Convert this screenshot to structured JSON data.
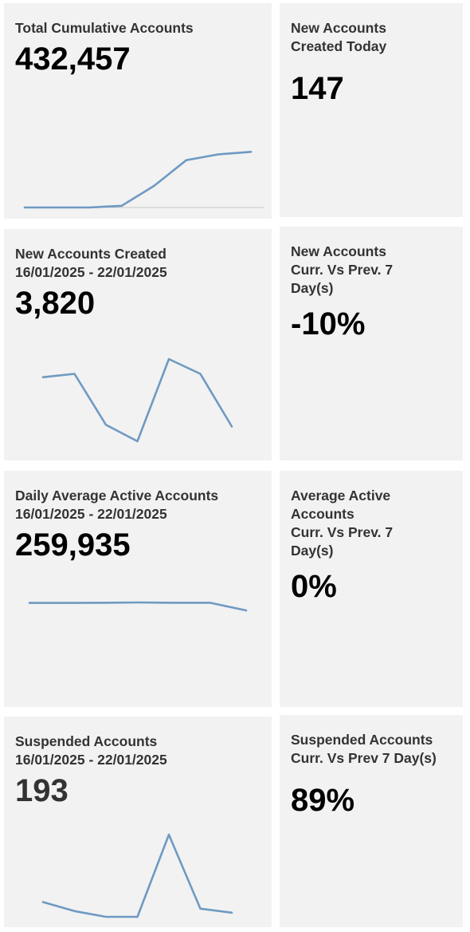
{
  "cards": [
    {
      "title": "Total Cumulative Accounts",
      "value": "432,457",
      "sparkline": [
        0,
        0,
        0,
        0.02,
        0.26,
        0.57,
        0.64,
        0.67
      ]
    },
    {
      "title": "New Accounts\nCreated Today",
      "value": "147"
    },
    {
      "title": "New Accounts Created\n16/01/2025 - 22/01/2025",
      "value": "3,820",
      "sparkline": [
        0.78,
        0.82,
        0.2,
        0.0,
        1.0,
        0.82,
        0.18
      ]
    },
    {
      "title": "New Accounts\nCurr. Vs Prev. 7\nDay(s)",
      "value": "-10%"
    },
    {
      "title": "Daily Average Active Accounts\n16/01/2025 - 22/01/2025",
      "value": "259,935",
      "sparkline": [
        0.97,
        0.97,
        0.98,
        1.0,
        0.98,
        0.98,
        0.5
      ]
    },
    {
      "title": "Average Active\nAccounts\nCurr. Vs Prev. 7\nDay(s)",
      "value": "0%"
    },
    {
      "title": "Suspended Accounts\n16/01/2025 - 22/01/2025",
      "value": "193",
      "sparkline": [
        0.18,
        0.07,
        0.0,
        0.0,
        1.0,
        0.1,
        0.05
      ]
    },
    {
      "title": "Suspended Accounts\nCurr. Vs Prev 7 Day(s)",
      "value": "89%"
    }
  ],
  "colors": {
    "card_bg": "#f2f2f2",
    "sparkline": "#6e9ac2",
    "title": "#333333",
    "value": "#000000"
  }
}
